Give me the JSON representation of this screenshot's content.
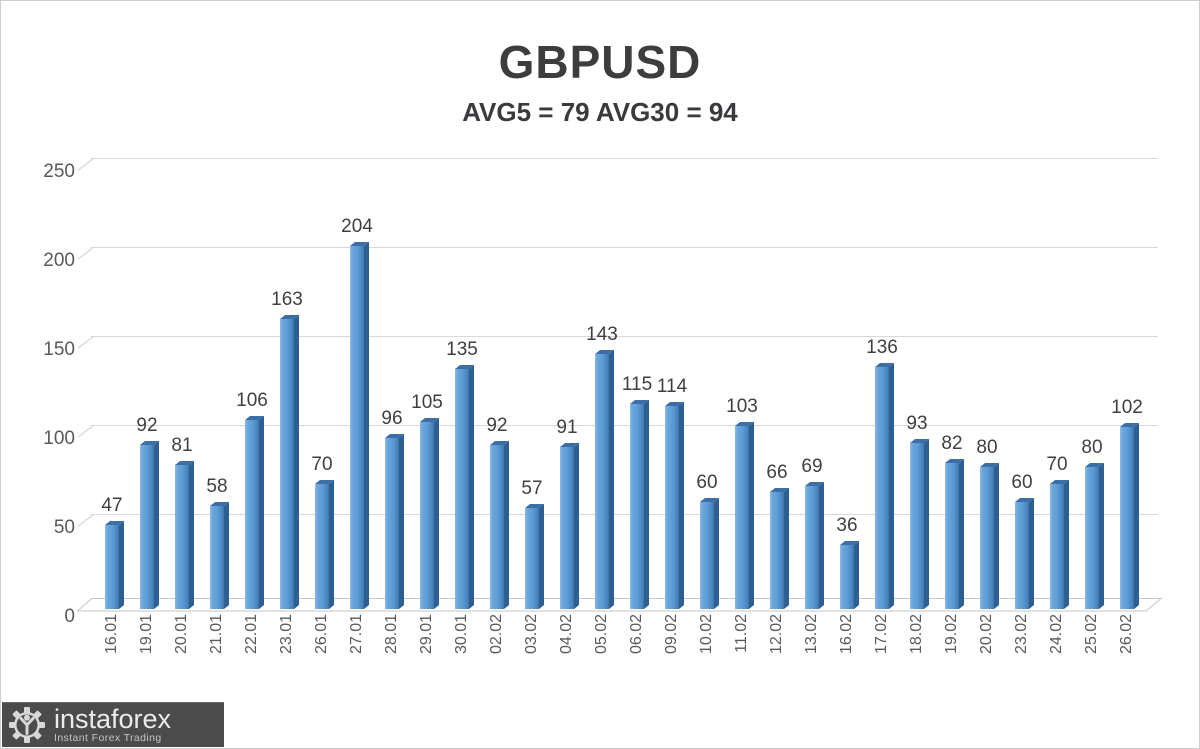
{
  "chart_data": {
    "type": "bar",
    "title": "GBPUSD",
    "subtitle": "AVG5 = 79 AVG30 = 94",
    "categories": [
      "16.01",
      "19.01",
      "20.01",
      "21.01",
      "22.01",
      "23.01",
      "26.01",
      "27.01",
      "28.01",
      "29.01",
      "30.01",
      "02.02",
      "03.02",
      "04.02",
      "05.02",
      "06.02",
      "09.02",
      "10.02",
      "11.02",
      "12.02",
      "13.02",
      "16.02",
      "17.02",
      "18.02",
      "19.02",
      "20.02",
      "23.02",
      "24.02",
      "25.02",
      "26.02"
    ],
    "values": [
      47,
      92,
      81,
      58,
      106,
      163,
      70,
      204,
      96,
      105,
      135,
      92,
      57,
      91,
      143,
      115,
      114,
      60,
      103,
      66,
      69,
      36,
      136,
      93,
      82,
      80,
      60,
      70,
      80,
      102
    ],
    "xlabel": "",
    "ylabel": "",
    "ylim": [
      0,
      250
    ],
    "yticks": [
      0,
      50,
      100,
      150,
      200,
      250
    ],
    "grid": true,
    "legend": false,
    "style": "3d-column",
    "bar_color": "#5b9bd5",
    "bar_side_color": "#2e5f92",
    "gridline_color": "#d8d8d8",
    "value_label_color": "#3f3f3f",
    "axis_label_color": "#595959",
    "title_color": "#3d3d40"
  },
  "logo": {
    "brand": "instaforex",
    "tagline": "Instant Forex Trading"
  }
}
